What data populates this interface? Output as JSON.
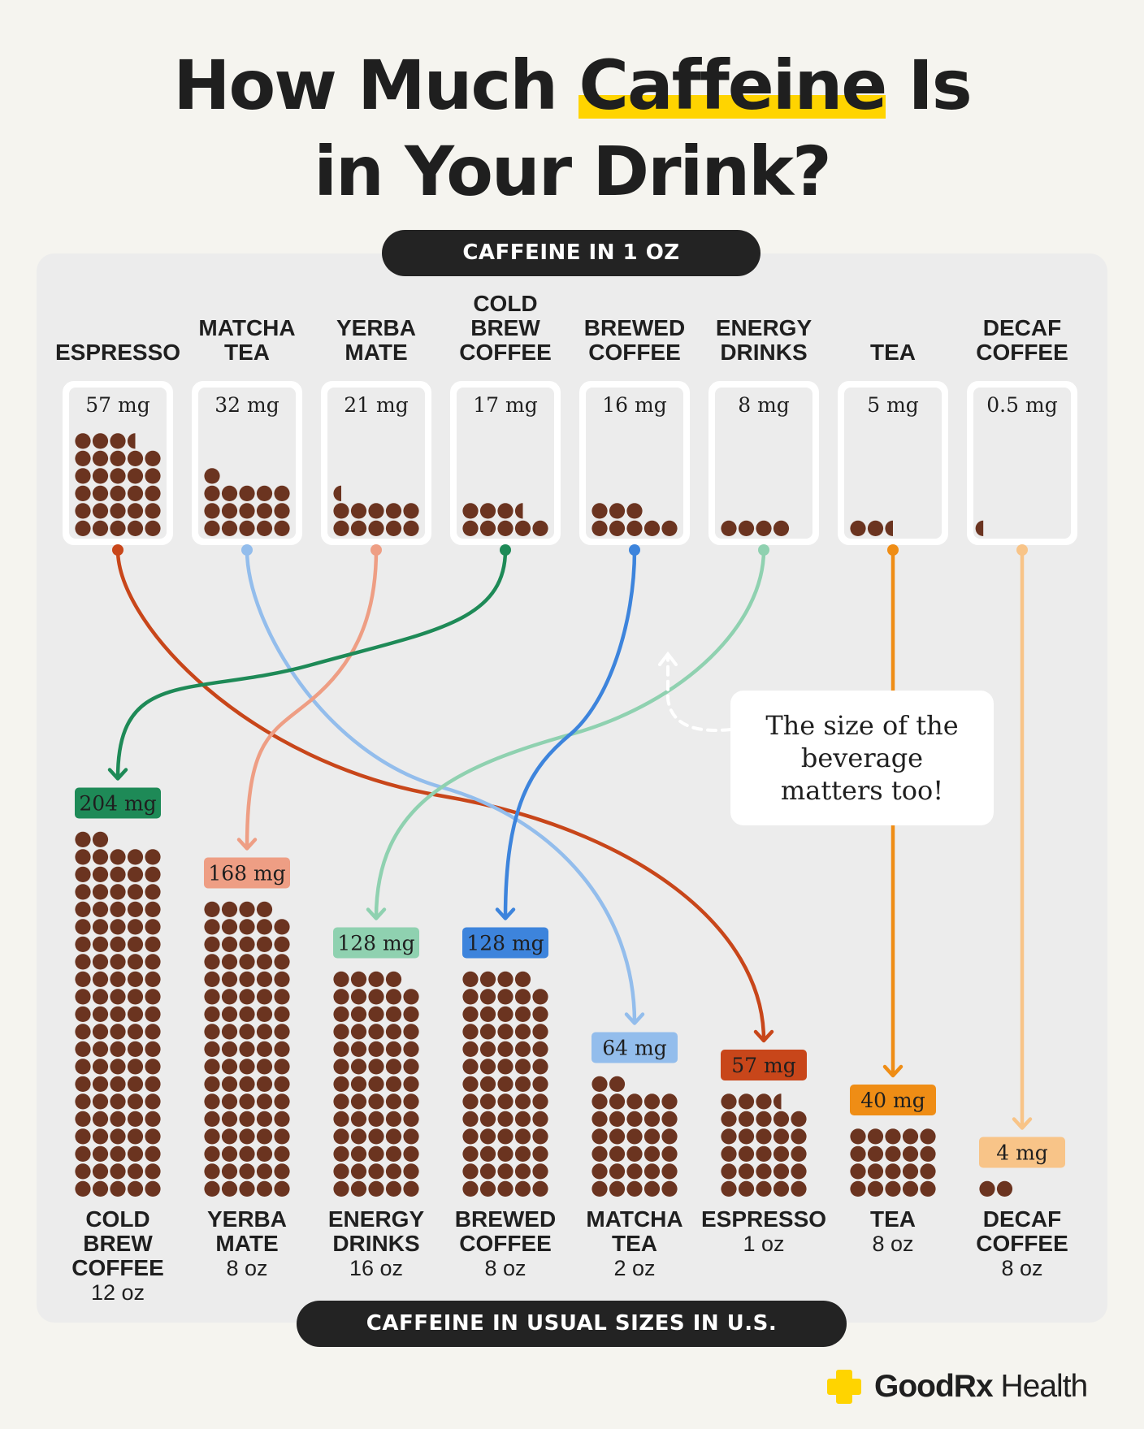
{
  "header": {
    "title_part1": "How Much ",
    "title_highlight": "Caffeine",
    "title_part2": " Is",
    "title_line2": "in Your Drink?"
  },
  "sections": {
    "top_label": "CAFFEINE IN 1 OZ",
    "bottom_label": "CAFFEINE IN USUAL SIZES IN U.S."
  },
  "callout": "The size of the beverage matters too!",
  "brand": {
    "name_bold": "GoodRx",
    "name_regular": " Health",
    "accent": "#ffd400"
  },
  "colors": {
    "bean": "#6b3420",
    "cold_brew": "#1e8a57",
    "yerba": "#ee9e84",
    "energy": "#8fd1b0",
    "brewed": "#3d84dc",
    "matcha": "#93bdec",
    "espresso": "#c8461a",
    "tea": "#ef8d15",
    "decaf": "#f8c488"
  },
  "chart_data": [
    {
      "type": "bar",
      "title": "CAFFEINE IN 1 OZ",
      "unit": "mg",
      "categories": [
        "ESPRESSO",
        "MATCHA TEA",
        "YERBA MATE",
        "COLD BREW COFFEE",
        "BREWED COFFEE",
        "ENERGY DRINKS",
        "TEA",
        "DECAF COFFEE"
      ],
      "category_lines": [
        [
          "ESPRESSO"
        ],
        [
          "MATCHA",
          "TEA"
        ],
        [
          "YERBA",
          "MATE"
        ],
        [
          "COLD",
          "BREW",
          "COFFEE"
        ],
        [
          "BREWED",
          "COFFEE"
        ],
        [
          "ENERGY",
          "DRINKS"
        ],
        [
          "TEA"
        ],
        [
          "DECAF",
          "COFFEE"
        ]
      ],
      "values": [
        57,
        32,
        21,
        17,
        16,
        8,
        5,
        0.5
      ],
      "value_labels": [
        "57 mg",
        "32 mg",
        "21 mg",
        "17 mg",
        "16 mg",
        "8 mg",
        "5 mg",
        "0.5 mg"
      ],
      "series_keys": [
        "espresso",
        "matcha",
        "yerba",
        "cold_brew",
        "brewed",
        "energy",
        "tea",
        "decaf"
      ]
    },
    {
      "type": "bar",
      "title": "CAFFEINE IN USUAL SIZES IN U.S.",
      "unit": "mg",
      "categories": [
        "COLD BREW COFFEE",
        "YERBA MATE",
        "ENERGY DRINKS",
        "BREWED COFFEE",
        "MATCHA TEA",
        "ESPRESSO",
        "TEA",
        "DECAF COFFEE"
      ],
      "category_lines": [
        [
          "COLD",
          "BREW",
          "COFFEE"
        ],
        [
          "YERBA",
          "MATE"
        ],
        [
          "ENERGY",
          "DRINKS"
        ],
        [
          "BREWED",
          "COFFEE"
        ],
        [
          "MATCHA",
          "TEA"
        ],
        [
          "ESPRESSO"
        ],
        [
          "TEA"
        ],
        [
          "DECAF",
          "COFFEE"
        ]
      ],
      "sizes": [
        "12 oz",
        "8 oz",
        "16 oz",
        "8 oz",
        "2 oz",
        "1 oz",
        "8 oz",
        "8 oz"
      ],
      "values": [
        204,
        168,
        128,
        128,
        64,
        57,
        40,
        4
      ],
      "value_labels": [
        "204 mg",
        "168 mg",
        "128 mg",
        "128 mg",
        "64 mg",
        "57 mg",
        "40 mg",
        "4 mg"
      ],
      "series_keys": [
        "cold_brew",
        "yerba",
        "energy",
        "brewed",
        "matcha",
        "espresso",
        "tea",
        "decaf"
      ]
    }
  ]
}
